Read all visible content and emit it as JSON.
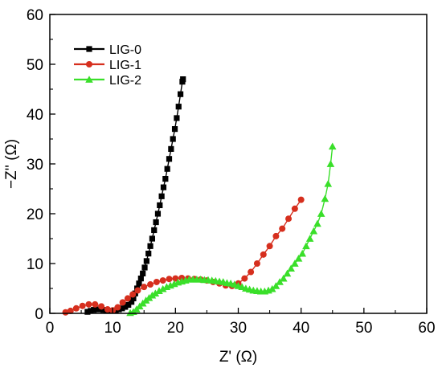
{
  "chart_data": {
    "type": "scatter",
    "title": "",
    "xlabel": "Z' (Ω)",
    "ylabel": "−Z'' (Ω)",
    "xlim": [
      0,
      60
    ],
    "ylim": [
      0,
      60
    ],
    "xticks": [
      0,
      10,
      20,
      30,
      40,
      50,
      60
    ],
    "yticks": [
      0,
      10,
      20,
      30,
      40,
      50,
      60
    ],
    "x_tick_labels": [
      "0",
      "10",
      "20",
      "30",
      "40",
      "50",
      "60"
    ],
    "y_tick_labels": [
      "0",
      "10",
      "20",
      "30",
      "40",
      "50",
      "60"
    ],
    "legend_position": "top-left",
    "grid": false,
    "series": [
      {
        "name": "LIG-0",
        "color": "#000000",
        "marker": "square",
        "points": [
          [
            6.0,
            0.3
          ],
          [
            6.5,
            0.5
          ],
          [
            7.0,
            0.7
          ],
          [
            7.5,
            0.8
          ],
          [
            8.0,
            0.8
          ],
          [
            8.5,
            0.7
          ],
          [
            9.0,
            0.6
          ],
          [
            9.5,
            0.5
          ],
          [
            10.0,
            0.5
          ],
          [
            10.5,
            0.6
          ],
          [
            11.0,
            0.8
          ],
          [
            11.5,
            1.0
          ],
          [
            12.0,
            1.3
          ],
          [
            12.5,
            1.7
          ],
          [
            13.0,
            2.3
          ],
          [
            13.3,
            3.0
          ],
          [
            13.6,
            4.0
          ],
          [
            13.9,
            5.0
          ],
          [
            14.2,
            6.0
          ],
          [
            14.5,
            7.0
          ],
          [
            14.8,
            8.0
          ],
          [
            15.1,
            9.2
          ],
          [
            15.4,
            10.5
          ],
          [
            15.7,
            12.0
          ],
          [
            16.0,
            13.5
          ],
          [
            16.3,
            15.0
          ],
          [
            16.6,
            16.7
          ],
          [
            16.9,
            18.3
          ],
          [
            17.2,
            20.0
          ],
          [
            17.5,
            21.7
          ],
          [
            17.8,
            23.5
          ],
          [
            18.1,
            25.3
          ],
          [
            18.4,
            27.0
          ],
          [
            18.7,
            29.0
          ],
          [
            19.0,
            31.0
          ],
          [
            19.3,
            33.0
          ],
          [
            19.6,
            35.0
          ],
          [
            19.9,
            37.0
          ],
          [
            20.2,
            39.2
          ],
          [
            20.5,
            41.5
          ],
          [
            20.8,
            44.0
          ],
          [
            21.1,
            46.5
          ],
          [
            21.2,
            47.0
          ]
        ]
      },
      {
        "name": "LIG-1",
        "color": "#d62f1e",
        "marker": "circle",
        "points": [
          [
            2.5,
            0.2
          ],
          [
            3.3,
            0.5
          ],
          [
            4.2,
            1.0
          ],
          [
            5.2,
            1.5
          ],
          [
            6.2,
            1.8
          ],
          [
            7.2,
            1.8
          ],
          [
            8.2,
            1.4
          ],
          [
            9.2,
            0.8
          ],
          [
            10.0,
            0.6
          ],
          [
            10.8,
            1.2
          ],
          [
            11.6,
            2.2
          ],
          [
            12.4,
            3.0
          ],
          [
            13.2,
            3.8
          ],
          [
            14.0,
            4.6
          ],
          [
            15.0,
            5.3
          ],
          [
            16.0,
            5.8
          ],
          [
            17.0,
            6.3
          ],
          [
            18.0,
            6.6
          ],
          [
            19.0,
            6.9
          ],
          [
            20.0,
            7.0
          ],
          [
            21.0,
            7.1
          ],
          [
            22.0,
            7.0
          ],
          [
            23.0,
            6.9
          ],
          [
            24.0,
            6.8
          ],
          [
            25.0,
            6.6
          ],
          [
            26.0,
            6.3
          ],
          [
            27.0,
            6.0
          ],
          [
            28.0,
            5.6
          ],
          [
            29.0,
            5.5
          ],
          [
            30.0,
            6.0
          ],
          [
            31.0,
            7.0
          ],
          [
            32.0,
            8.3
          ],
          [
            33.0,
            10.0
          ],
          [
            34.0,
            11.8
          ],
          [
            35.0,
            13.5
          ],
          [
            36.0,
            15.5
          ],
          [
            37.0,
            17.0
          ],
          [
            38.0,
            19.0
          ],
          [
            39.0,
            21.0
          ],
          [
            40.0,
            22.8
          ]
        ]
      },
      {
        "name": "LIG-2",
        "color": "#3adf2a",
        "marker": "triangle",
        "points": [
          [
            12.8,
            0.1
          ],
          [
            13.3,
            0.3
          ],
          [
            13.8,
            0.8
          ],
          [
            14.3,
            1.4
          ],
          [
            14.8,
            2.0
          ],
          [
            15.3,
            2.6
          ],
          [
            15.8,
            3.1
          ],
          [
            16.3,
            3.6
          ],
          [
            16.8,
            4.0
          ],
          [
            17.4,
            4.5
          ],
          [
            18.0,
            4.9
          ],
          [
            18.6,
            5.3
          ],
          [
            19.2,
            5.6
          ],
          [
            19.8,
            5.9
          ],
          [
            20.4,
            6.2
          ],
          [
            21.0,
            6.4
          ],
          [
            21.6,
            6.6
          ],
          [
            22.2,
            6.8
          ],
          [
            22.8,
            6.8
          ],
          [
            23.4,
            6.8
          ],
          [
            24.0,
            6.8
          ],
          [
            24.6,
            6.7
          ],
          [
            25.2,
            6.7
          ],
          [
            25.8,
            6.6
          ],
          [
            26.4,
            6.5
          ],
          [
            27.0,
            6.4
          ],
          [
            27.6,
            6.3
          ],
          [
            28.2,
            6.1
          ],
          [
            28.8,
            6.0
          ],
          [
            29.4,
            5.8
          ],
          [
            30.0,
            5.5
          ],
          [
            30.6,
            5.3
          ],
          [
            31.2,
            5.0
          ],
          [
            31.8,
            4.8
          ],
          [
            32.4,
            4.6
          ],
          [
            33.0,
            4.5
          ],
          [
            33.6,
            4.4
          ],
          [
            34.2,
            4.4
          ],
          [
            34.8,
            4.6
          ],
          [
            35.4,
            4.9
          ],
          [
            36.0,
            5.5
          ],
          [
            36.6,
            6.3
          ],
          [
            37.2,
            7.0
          ],
          [
            37.8,
            8.0
          ],
          [
            38.4,
            9.0
          ],
          [
            39.0,
            10.0
          ],
          [
            39.6,
            11.0
          ],
          [
            40.2,
            12.0
          ],
          [
            40.8,
            13.5
          ],
          [
            41.4,
            15.0
          ],
          [
            42.0,
            16.5
          ],
          [
            42.6,
            18.0
          ],
          [
            43.2,
            20.0
          ],
          [
            43.8,
            23.0
          ],
          [
            44.3,
            26.0
          ],
          [
            44.7,
            30.0
          ],
          [
            45.0,
            33.5
          ]
        ]
      }
    ]
  }
}
